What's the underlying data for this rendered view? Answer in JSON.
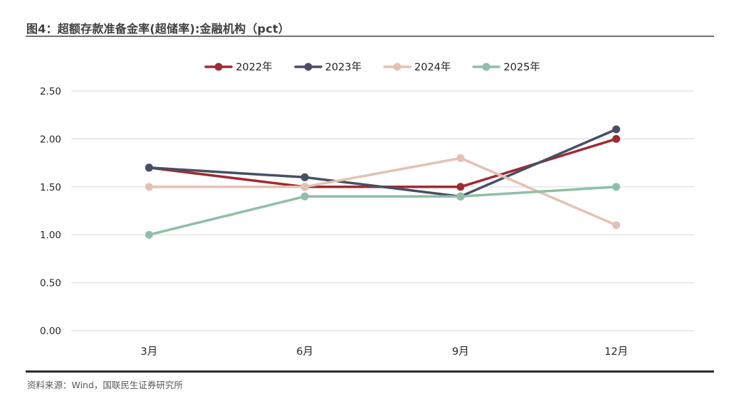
{
  "header": {
    "title": "图4：超额存款准备金率(超储率):金融机构（pct）"
  },
  "footer": {
    "source": "资料来源：Wind，国联民生证券研究所"
  },
  "colors": {
    "title_text": "#3f3f3f",
    "title_rule": "#6f7377",
    "footer_rule": "#2b2b2b",
    "source_text": "#595959",
    "gridline": "#dedede",
    "axis_text": "#262626",
    "background": "#ffffff"
  },
  "chart_data": {
    "type": "line",
    "title": "超额存款准备金率(超储率):金融机构（pct）",
    "categories": [
      "3月",
      "6月",
      "9月",
      "12月"
    ],
    "series": [
      {
        "name": "2022年",
        "color": "#a02a33",
        "values": [
          1.7,
          1.5,
          1.5,
          2.0
        ]
      },
      {
        "name": "2023年",
        "color": "#474f63",
        "values": [
          1.7,
          1.6,
          1.4,
          2.1
        ]
      },
      {
        "name": "2024年",
        "color": "#e3c2b3",
        "values": [
          1.5,
          1.5,
          1.8,
          1.1
        ]
      },
      {
        "name": "2025年",
        "color": "#8fbfa6",
        "values": [
          1.0,
          1.4,
          1.4,
          1.5
        ]
      }
    ],
    "xlabel": "",
    "ylabel": "",
    "ylim": [
      0,
      2.5
    ],
    "ytick_step": 0.5,
    "ytick_labels": [
      "0.00",
      "0.50",
      "1.00",
      "1.50",
      "2.00",
      "2.50"
    ],
    "grid": "horizontal",
    "legend_position": "top-center",
    "marker": "circle",
    "line_width": 3.5,
    "marker_radius": 5.5
  }
}
